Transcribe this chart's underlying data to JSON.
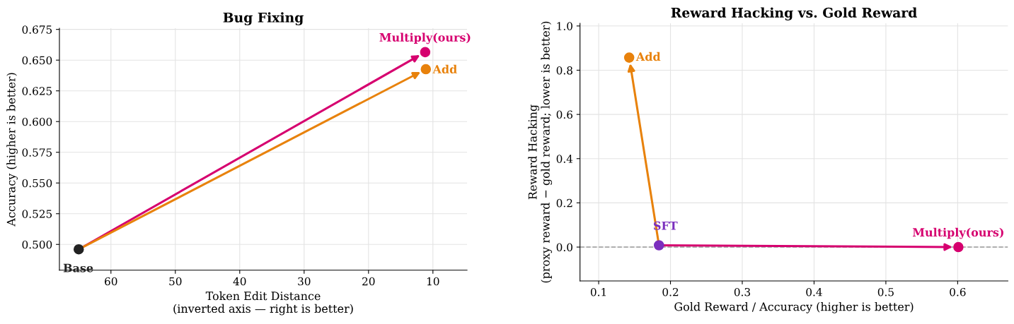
{
  "chart_data": [
    {
      "type": "scatter",
      "title": "Bug Fixing",
      "xlabel": "Token Edit Distance\n(inverted axis — right is better)",
      "ylabel": "Accuracy (higher is better)",
      "xlim": [
        68,
        4.7
      ],
      "xticks": [
        60,
        50,
        40,
        30,
        20,
        10
      ],
      "ylim": [
        0.479,
        0.676
      ],
      "yticks": [
        {
          "value": 0.5,
          "label": "0.500"
        },
        {
          "value": 0.525,
          "label": "0.525"
        },
        {
          "value": 0.55,
          "label": "0.550"
        },
        {
          "value": 0.575,
          "label": "0.575"
        },
        {
          "value": 0.6,
          "label": "0.600"
        },
        {
          "value": 0.625,
          "label": "0.625"
        },
        {
          "value": 0.65,
          "label": "0.650"
        },
        {
          "value": 0.675,
          "label": "0.675"
        }
      ],
      "grid": true,
      "marker": "circle",
      "series": [
        {
          "name": "Base",
          "color": "#222222",
          "x": [
            65
          ],
          "values": [
            0.496
          ]
        },
        {
          "name": "Multiply(ours)",
          "color": "#d6006f",
          "x": [
            11.2
          ],
          "values": [
            0.6565
          ]
        },
        {
          "name": "Add",
          "color": "#e8820c",
          "x": [
            11.1
          ],
          "values": [
            0.6426
          ]
        }
      ]
    },
    {
      "type": "scatter",
      "title": "Reward Hacking vs. Gold Reward",
      "xlabel": "Gold Reward / Accuracy (higher is better)",
      "ylabel": "Reward Hacking\n(proxy reward − gold reward; lower is better)",
      "xlim": [
        0.074,
        0.67
      ],
      "xticks": [
        0.1,
        0.2,
        0.3,
        0.4,
        0.5,
        0.6
      ],
      "ylim": [
        -0.153,
        1.012
      ],
      "yticks": [
        {
          "value": 0,
          "label": "0.0"
        },
        0.2,
        0.4,
        0.6,
        0.8,
        {
          "value": 1,
          "label": "1.0"
        }
      ],
      "grid": true,
      "marker": "circle",
      "ref_lines": [
        {
          "axis": "y",
          "value": 0,
          "color": "#999999",
          "line_style": "dashed"
        }
      ],
      "series": [
        {
          "name": "SFT",
          "color": "#7b2fbe",
          "x": [
            0.184
          ],
          "values": [
            0.008
          ]
        },
        {
          "name": "Add",
          "color": "#e8820c",
          "x": [
            0.1425
          ],
          "values": [
            0.857
          ]
        },
        {
          "name": "Multiply(ours)",
          "color": "#d6006f",
          "x": [
            0.601
          ],
          "values": [
            0.0
          ]
        }
      ]
    }
  ]
}
